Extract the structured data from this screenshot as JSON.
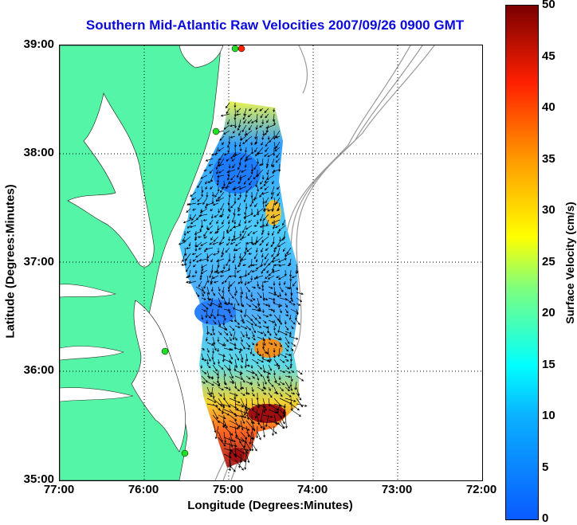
{
  "title": "Southern Mid-Atlantic Raw Velocities 2007/09/26 0900 GMT",
  "axes": {
    "xlabel": "Longitude (Degrees:Minutes)",
    "ylabel": "Latitude (Degrees:Minutes)",
    "xticks": [
      "77:00",
      "76:00",
      "75:00",
      "74:00",
      "73:00",
      "72:00"
    ],
    "yticks": [
      "39:00",
      "38:00",
      "37:00",
      "36:00",
      "35:00"
    ],
    "grid": "dotted"
  },
  "colorbar": {
    "label": "Surface Velocity (cm/s)",
    "min": 0,
    "max": 50,
    "ticks": [
      "50",
      "45",
      "40",
      "35",
      "30",
      "25",
      "20",
      "15",
      "10",
      "5",
      "0"
    ],
    "colormap": "jet"
  },
  "colors": {
    "land": "#55f5a8",
    "water": "#ffffff",
    "bathymetry": "#9a9a9a",
    "title": "#0a0adc",
    "station": "#22dd22",
    "station_offline": "#ff2200"
  }
}
